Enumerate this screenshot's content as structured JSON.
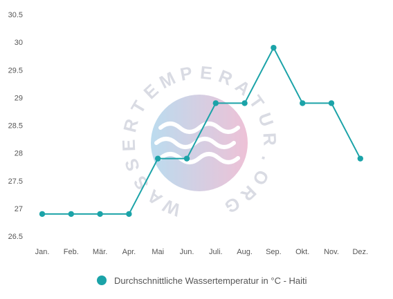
{
  "watermark": {
    "text": "WASSERTEMPERATUR.ORG",
    "colors": [
      "#9fcde8",
      "#e7a8c6"
    ]
  },
  "chart_data": {
    "type": "line",
    "categories": [
      "Jan.",
      "Feb.",
      "Mär.",
      "Apr.",
      "Mai",
      "Jun.",
      "Juli.",
      "Aug.",
      "Sep.",
      "Okt.",
      "Nov.",
      "Dez."
    ],
    "series": [
      {
        "name": "Durchschnittliche Wassertemperatur in °C - Haiti",
        "color": "#1ba3a8",
        "values": [
          26.9,
          26.9,
          26.9,
          26.9,
          27.9,
          27.9,
          28.9,
          28.9,
          29.9,
          28.9,
          28.9,
          27.9
        ]
      }
    ],
    "ylim": [
      26.5,
      30.5
    ],
    "yticks": [
      "26.5",
      "27",
      "27.5",
      "28",
      "28.5",
      "29",
      "29.5",
      "30",
      "30.5"
    ],
    "xlabel": "",
    "ylabel": "",
    "title": "",
    "grid": false,
    "legend_position": "bottom-center"
  }
}
